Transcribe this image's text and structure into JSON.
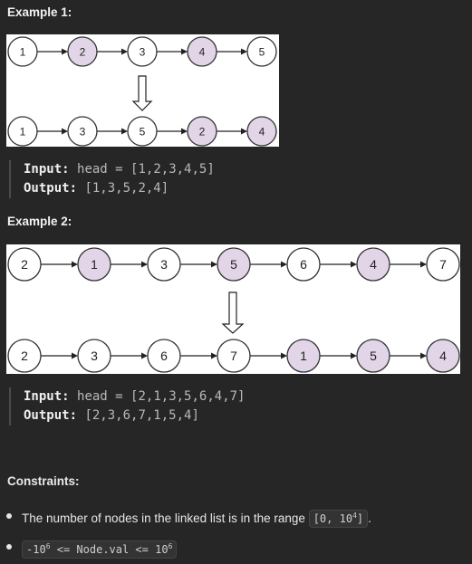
{
  "examples": [
    {
      "title": "Example 1:",
      "top_nodes": [
        {
          "label": "1",
          "highlight": false
        },
        {
          "label": "2",
          "highlight": true
        },
        {
          "label": "3",
          "highlight": false
        },
        {
          "label": "4",
          "highlight": true
        },
        {
          "label": "5",
          "highlight": false
        }
      ],
      "bottom_nodes": [
        {
          "label": "1",
          "highlight": false
        },
        {
          "label": "3",
          "highlight": false
        },
        {
          "label": "5",
          "highlight": false
        },
        {
          "label": "2",
          "highlight": true
        },
        {
          "label": "4",
          "highlight": true
        }
      ],
      "input_label": "Input:",
      "input_var": "head",
      "input_eq": "=",
      "input_value": "[1,2,3,4,5]",
      "output_label": "Output:",
      "output_value": "[1,3,5,2,4]"
    },
    {
      "title": "Example 2:",
      "top_nodes": [
        {
          "label": "2",
          "highlight": false
        },
        {
          "label": "1",
          "highlight": true
        },
        {
          "label": "3",
          "highlight": false
        },
        {
          "label": "5",
          "highlight": true
        },
        {
          "label": "6",
          "highlight": false
        },
        {
          "label": "4",
          "highlight": true
        },
        {
          "label": "7",
          "highlight": false
        }
      ],
      "bottom_nodes": [
        {
          "label": "2",
          "highlight": false
        },
        {
          "label": "3",
          "highlight": false
        },
        {
          "label": "6",
          "highlight": false
        },
        {
          "label": "7",
          "highlight": false
        },
        {
          "label": "1",
          "highlight": true
        },
        {
          "label": "5",
          "highlight": true
        },
        {
          "label": "4",
          "highlight": true
        }
      ],
      "input_label": "Input:",
      "input_var": "head",
      "input_eq": "=",
      "input_value": "[2,1,3,5,6,4,7]",
      "output_label": "Output:",
      "output_value": "[2,3,6,7,1,5,4]"
    }
  ],
  "colors": {
    "node_fill": "#ffffff",
    "node_highlight": "#e1d5e7",
    "node_stroke": "#333333",
    "page_bg": "#262626"
  },
  "constraints": {
    "title": "Constraints:",
    "item1_text": "The number of nodes in the linked list is in the range",
    "item1_code_prefix": "[0, 10",
    "item1_code_sup": "4",
    "item1_code_suffix": "]",
    "item1_end": ".",
    "item2_code_a": "-10",
    "item2_code_sup_a": "6",
    "item2_code_mid": " <= Node.val <= 10",
    "item2_code_sup_b": "6"
  }
}
